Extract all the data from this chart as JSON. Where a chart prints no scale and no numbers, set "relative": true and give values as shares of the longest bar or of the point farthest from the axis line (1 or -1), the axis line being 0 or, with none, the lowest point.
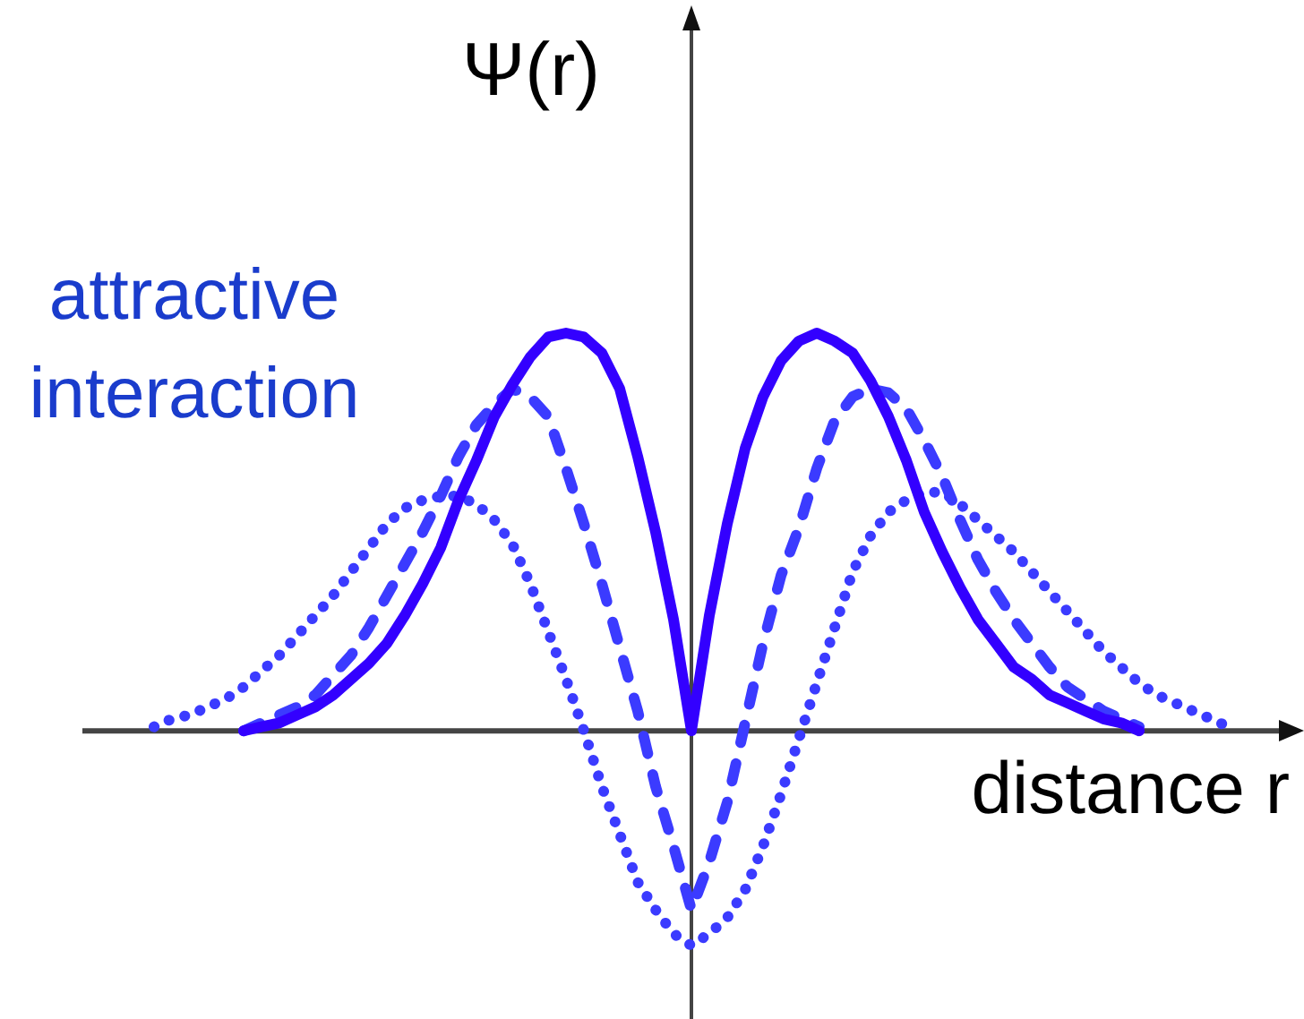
{
  "chart_data": {
    "type": "line",
    "relative": true,
    "ylabel": "Ψ(r)",
    "xlabel": "distance r",
    "annotations": [
      "attractive interaction"
    ],
    "legend": false,
    "marker": "none",
    "categories": [
      null,
      null,
      null,
      null,
      null,
      null,
      null,
      null,
      null,
      null,
      null,
      null,
      null,
      null,
      null,
      null,
      null,
      null,
      null,
      null,
      null,
      null,
      null,
      null,
      null,
      null,
      null,
      null,
      null,
      null,
      null,
      null,
      null,
      null,
      null,
      null,
      null,
      null,
      null,
      null,
      null,
      null,
      null,
      null,
      null,
      null,
      null,
      null,
      null,
      null,
      null,
      null,
      null,
      null,
      null,
      null,
      null,
      null,
      null,
      null,
      null
    ],
    "series": [
      {
        "color": "#3300ff",
        "line_style": "solid",
        "values": [
          null,
          null,
          null,
          null,
          null,
          0,
          0.01,
          0.02,
          0.04,
          0.06,
          0.09,
          0.13,
          0.17,
          0.22,
          0.29,
          0.37,
          0.46,
          0.58,
          0.68,
          0.79,
          0.87,
          0.94,
          0.99,
          1,
          0.99,
          0.95,
          0.86,
          0.69,
          0.5,
          0.28,
          0,
          0.29,
          0.52,
          0.71,
          0.84,
          0.93,
          0.98,
          1,
          0.98,
          0.95,
          0.88,
          0.79,
          0.68,
          0.55,
          0.45,
          0.36,
          0.28,
          0.22,
          0.16,
          0.13,
          0.09,
          0.07,
          0.05,
          0.03,
          0.02,
          0,
          null,
          null,
          null,
          null,
          null
        ]
      },
      {
        "color": "#3b3bff",
        "line_style": "dashed",
        "values": [
          null,
          null,
          null,
          null,
          null,
          0,
          0.02,
          0.04,
          0.06,
          0.09,
          0.14,
          0.19,
          0.26,
          0.34,
          0.42,
          0.5,
          0.59,
          0.69,
          0.77,
          0.82,
          0.86,
          0.84,
          0.79,
          0.66,
          0.52,
          0.37,
          0.21,
          0.05,
          -0.14,
          -0.29,
          -0.45,
          -0.33,
          -0.18,
          0.02,
          0.22,
          0.39,
          0.51,
          0.66,
          0.78,
          0.84,
          0.86,
          0.85,
          0.81,
          0.73,
          0.64,
          0.53,
          0.43,
          0.35,
          0.28,
          0.22,
          0.16,
          0.11,
          0.08,
          0.05,
          0.03,
          0.01,
          null,
          null,
          null,
          null,
          null
        ]
      },
      {
        "color": "#3b3bff",
        "line_style": "dotted",
        "values": [
          0.01,
          0.03,
          0.04,
          0.06,
          0.08,
          0.11,
          0.15,
          0.19,
          0.24,
          0.29,
          0.34,
          0.4,
          0.46,
          0.52,
          0.56,
          0.58,
          0.59,
          0.59,
          0.57,
          0.53,
          0.47,
          0.37,
          0.25,
          0.13,
          0,
          -0.14,
          -0.26,
          -0.38,
          -0.45,
          -0.51,
          -0.54,
          -0.51,
          -0.47,
          -0.4,
          -0.29,
          -0.16,
          -0.02,
          0.12,
          0.26,
          0.4,
          0.49,
          0.55,
          0.58,
          0.6,
          0.6,
          0.57,
          0.53,
          0.49,
          0.45,
          0.4,
          0.35,
          0.3,
          0.25,
          0.2,
          0.16,
          0.12,
          0.09,
          0.07,
          0.05,
          0.03,
          0.01
        ]
      }
    ]
  }
}
